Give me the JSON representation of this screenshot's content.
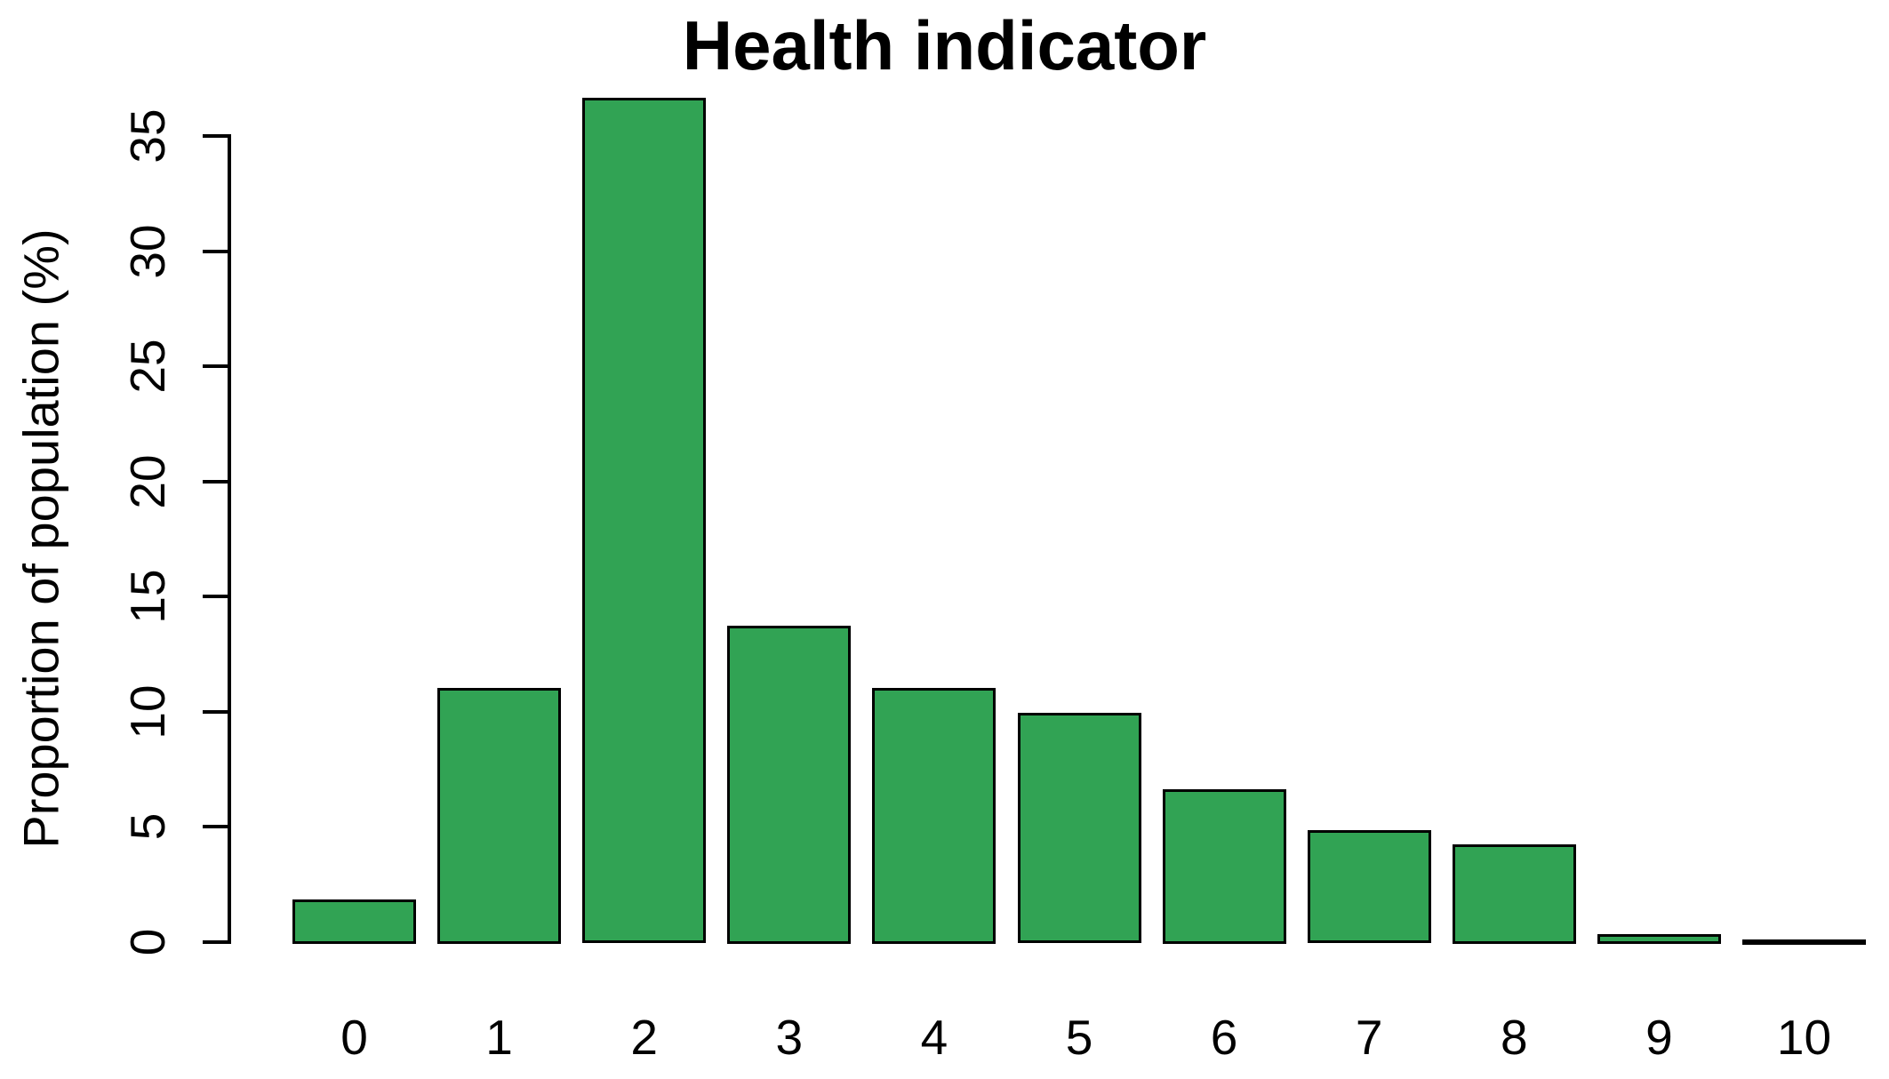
{
  "chart_data": {
    "type": "bar",
    "title": "Health indicator",
    "ylabel": "Proportion of population (%)",
    "xlabel": "",
    "categories": [
      "0",
      "1",
      "2",
      "3",
      "4",
      "5",
      "6",
      "7",
      "8",
      "9",
      "10"
    ],
    "values": [
      1.8,
      11.0,
      36.6,
      13.7,
      11.0,
      9.9,
      6.6,
      4.8,
      4.2,
      0.3,
      0.05
    ],
    "ylim": [
      0,
      35
    ],
    "y_ticks": [
      0,
      5,
      10,
      15,
      20,
      25,
      30,
      35
    ],
    "grid": false,
    "legend_position": "none",
    "bar_fill_color": "#31a354",
    "bar_border_color": "#000000",
    "background_color": "#ffffff",
    "text_color": "#000000"
  }
}
